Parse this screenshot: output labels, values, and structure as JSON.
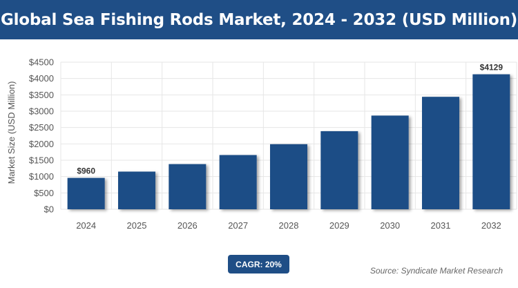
{
  "header": {
    "title": "Global Sea Fishing Rods Market, 2024 - 2032 (USD Million)"
  },
  "chart_data": {
    "type": "bar",
    "title": "Global Sea Fishing Rods Market, 2024 - 2032 (USD Million)",
    "xlabel": "",
    "ylabel": "Market Size (USD Million)",
    "categories": [
      "2024",
      "2025",
      "2026",
      "2027",
      "2028",
      "2029",
      "2030",
      "2031",
      "2032"
    ],
    "values": [
      960,
      1152,
      1382,
      1659,
      1991,
      2389,
      2866,
      3440,
      4129
    ],
    "data_labels": {
      "0": "$960",
      "8": "$4129"
    },
    "ylim": [
      0,
      4500
    ],
    "yticks": [
      0,
      500,
      1000,
      1500,
      2000,
      2500,
      3000,
      3500,
      4000,
      4500
    ],
    "ytick_labels": [
      "$0",
      "$500",
      "$1000",
      "$1500",
      "$2000",
      "$2500",
      "$3000",
      "$3500",
      "$4000",
      "$4500"
    ],
    "grid": true,
    "bar_color": "#1f4e86"
  },
  "footer": {
    "cagr": "CAGR: 20%",
    "source": "Source: Syndicate Market Research"
  },
  "colors": {
    "brand": "#1f4e86",
    "grid": "#e6e6e6",
    "axis_text": "#555555"
  }
}
